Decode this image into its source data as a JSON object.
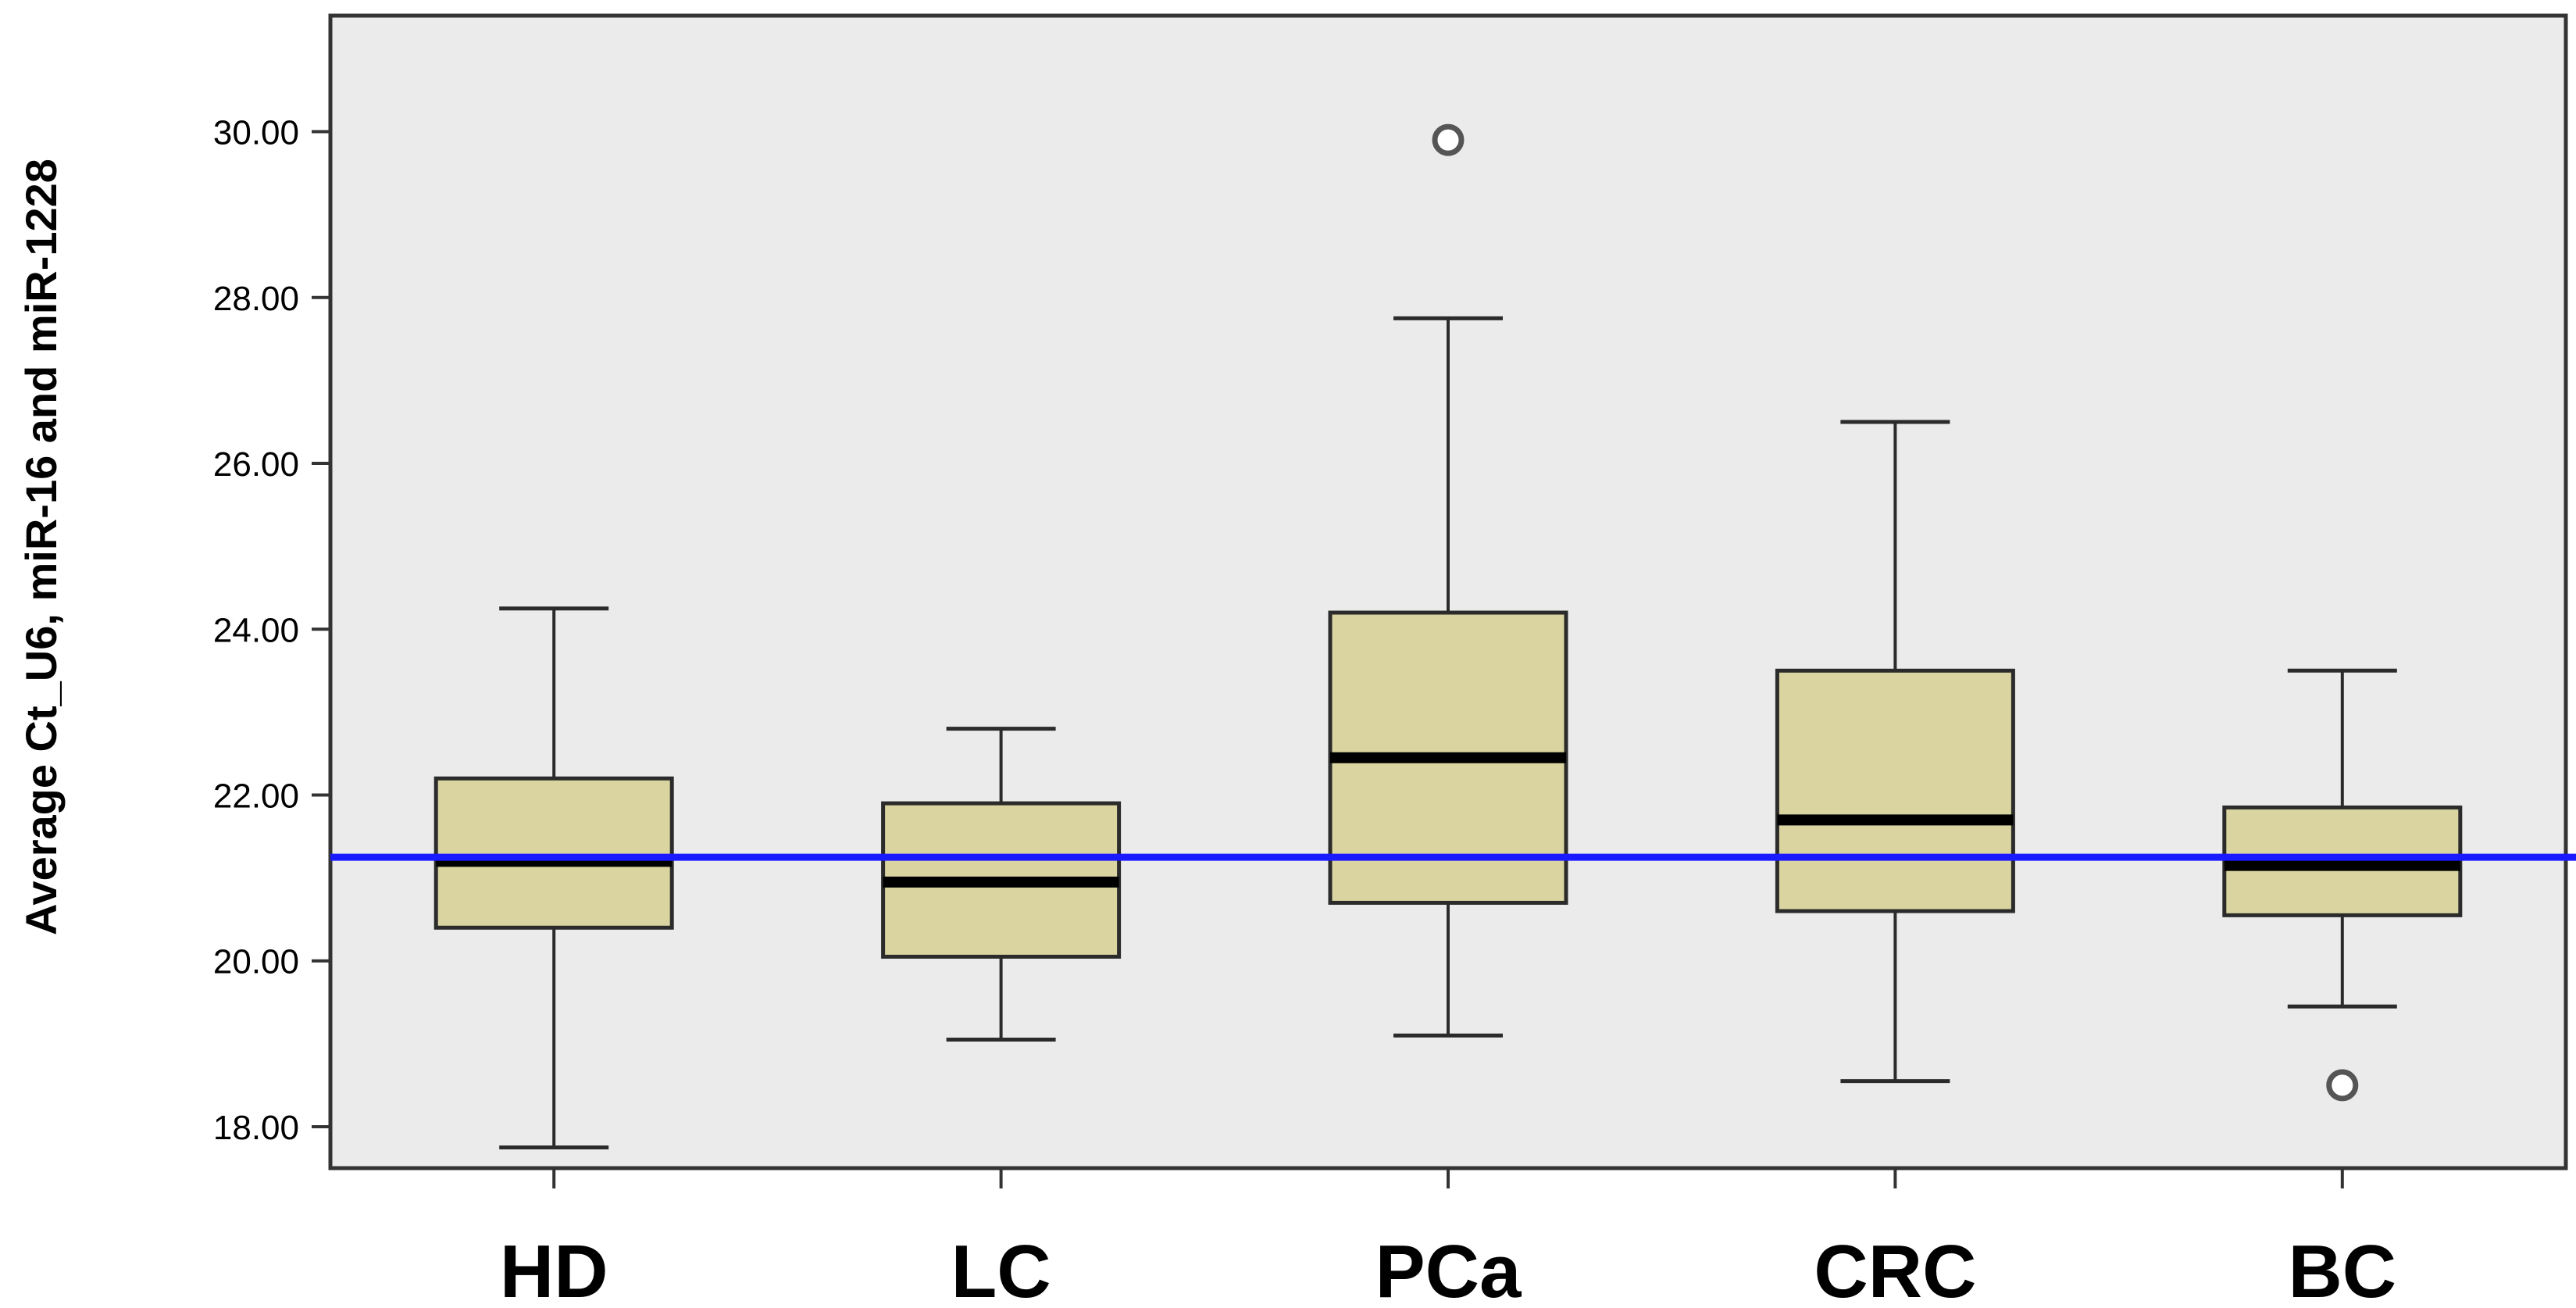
{
  "chart_data": {
    "type": "box",
    "title": "",
    "xlabel": "",
    "ylabel": "Average Ct_U6, miR-16 and miR-1228",
    "ylim": [
      17.5,
      31.4
    ],
    "yticks": [
      18,
      20,
      22,
      24,
      26,
      28,
      30
    ],
    "ytick_labels": [
      "18.00",
      "20.00",
      "22.00",
      "24.00",
      "26.00",
      "28.00",
      "30.00"
    ],
    "categories": [
      "HD",
      "LC",
      "PCa",
      "CRC",
      "BC"
    ],
    "boxes": [
      {
        "category": "HD",
        "whisker_low": 17.75,
        "q1": 20.4,
        "median": 21.2,
        "q3": 22.2,
        "whisker_high": 24.25,
        "outliers": []
      },
      {
        "category": "LC",
        "whisker_low": 19.05,
        "q1": 20.05,
        "median": 20.95,
        "q3": 21.9,
        "whisker_high": 22.8,
        "outliers": []
      },
      {
        "category": "PCa",
        "whisker_low": 19.1,
        "q1": 20.7,
        "median": 22.45,
        "q3": 24.2,
        "whisker_high": 27.75,
        "outliers": [
          29.9
        ]
      },
      {
        "category": "CRC",
        "whisker_low": 18.55,
        "q1": 20.6,
        "median": 21.7,
        "q3": 23.5,
        "whisker_high": 26.5,
        "outliers": []
      },
      {
        "category": "BC",
        "whisker_low": 19.45,
        "q1": 20.55,
        "median": 21.15,
        "q3": 21.85,
        "whisker_high": 23.5,
        "outliers": [
          18.5
        ]
      }
    ],
    "reference_line": {
      "value": 21.25,
      "color": "#1a1aff"
    },
    "colors": {
      "plot_background": "#ebebeb",
      "box_fill": "#d9d4a0",
      "box_stroke": "#2b2b2b",
      "median": "#000000",
      "outlier_stroke": "#555555"
    },
    "grid": false,
    "legend": false
  }
}
